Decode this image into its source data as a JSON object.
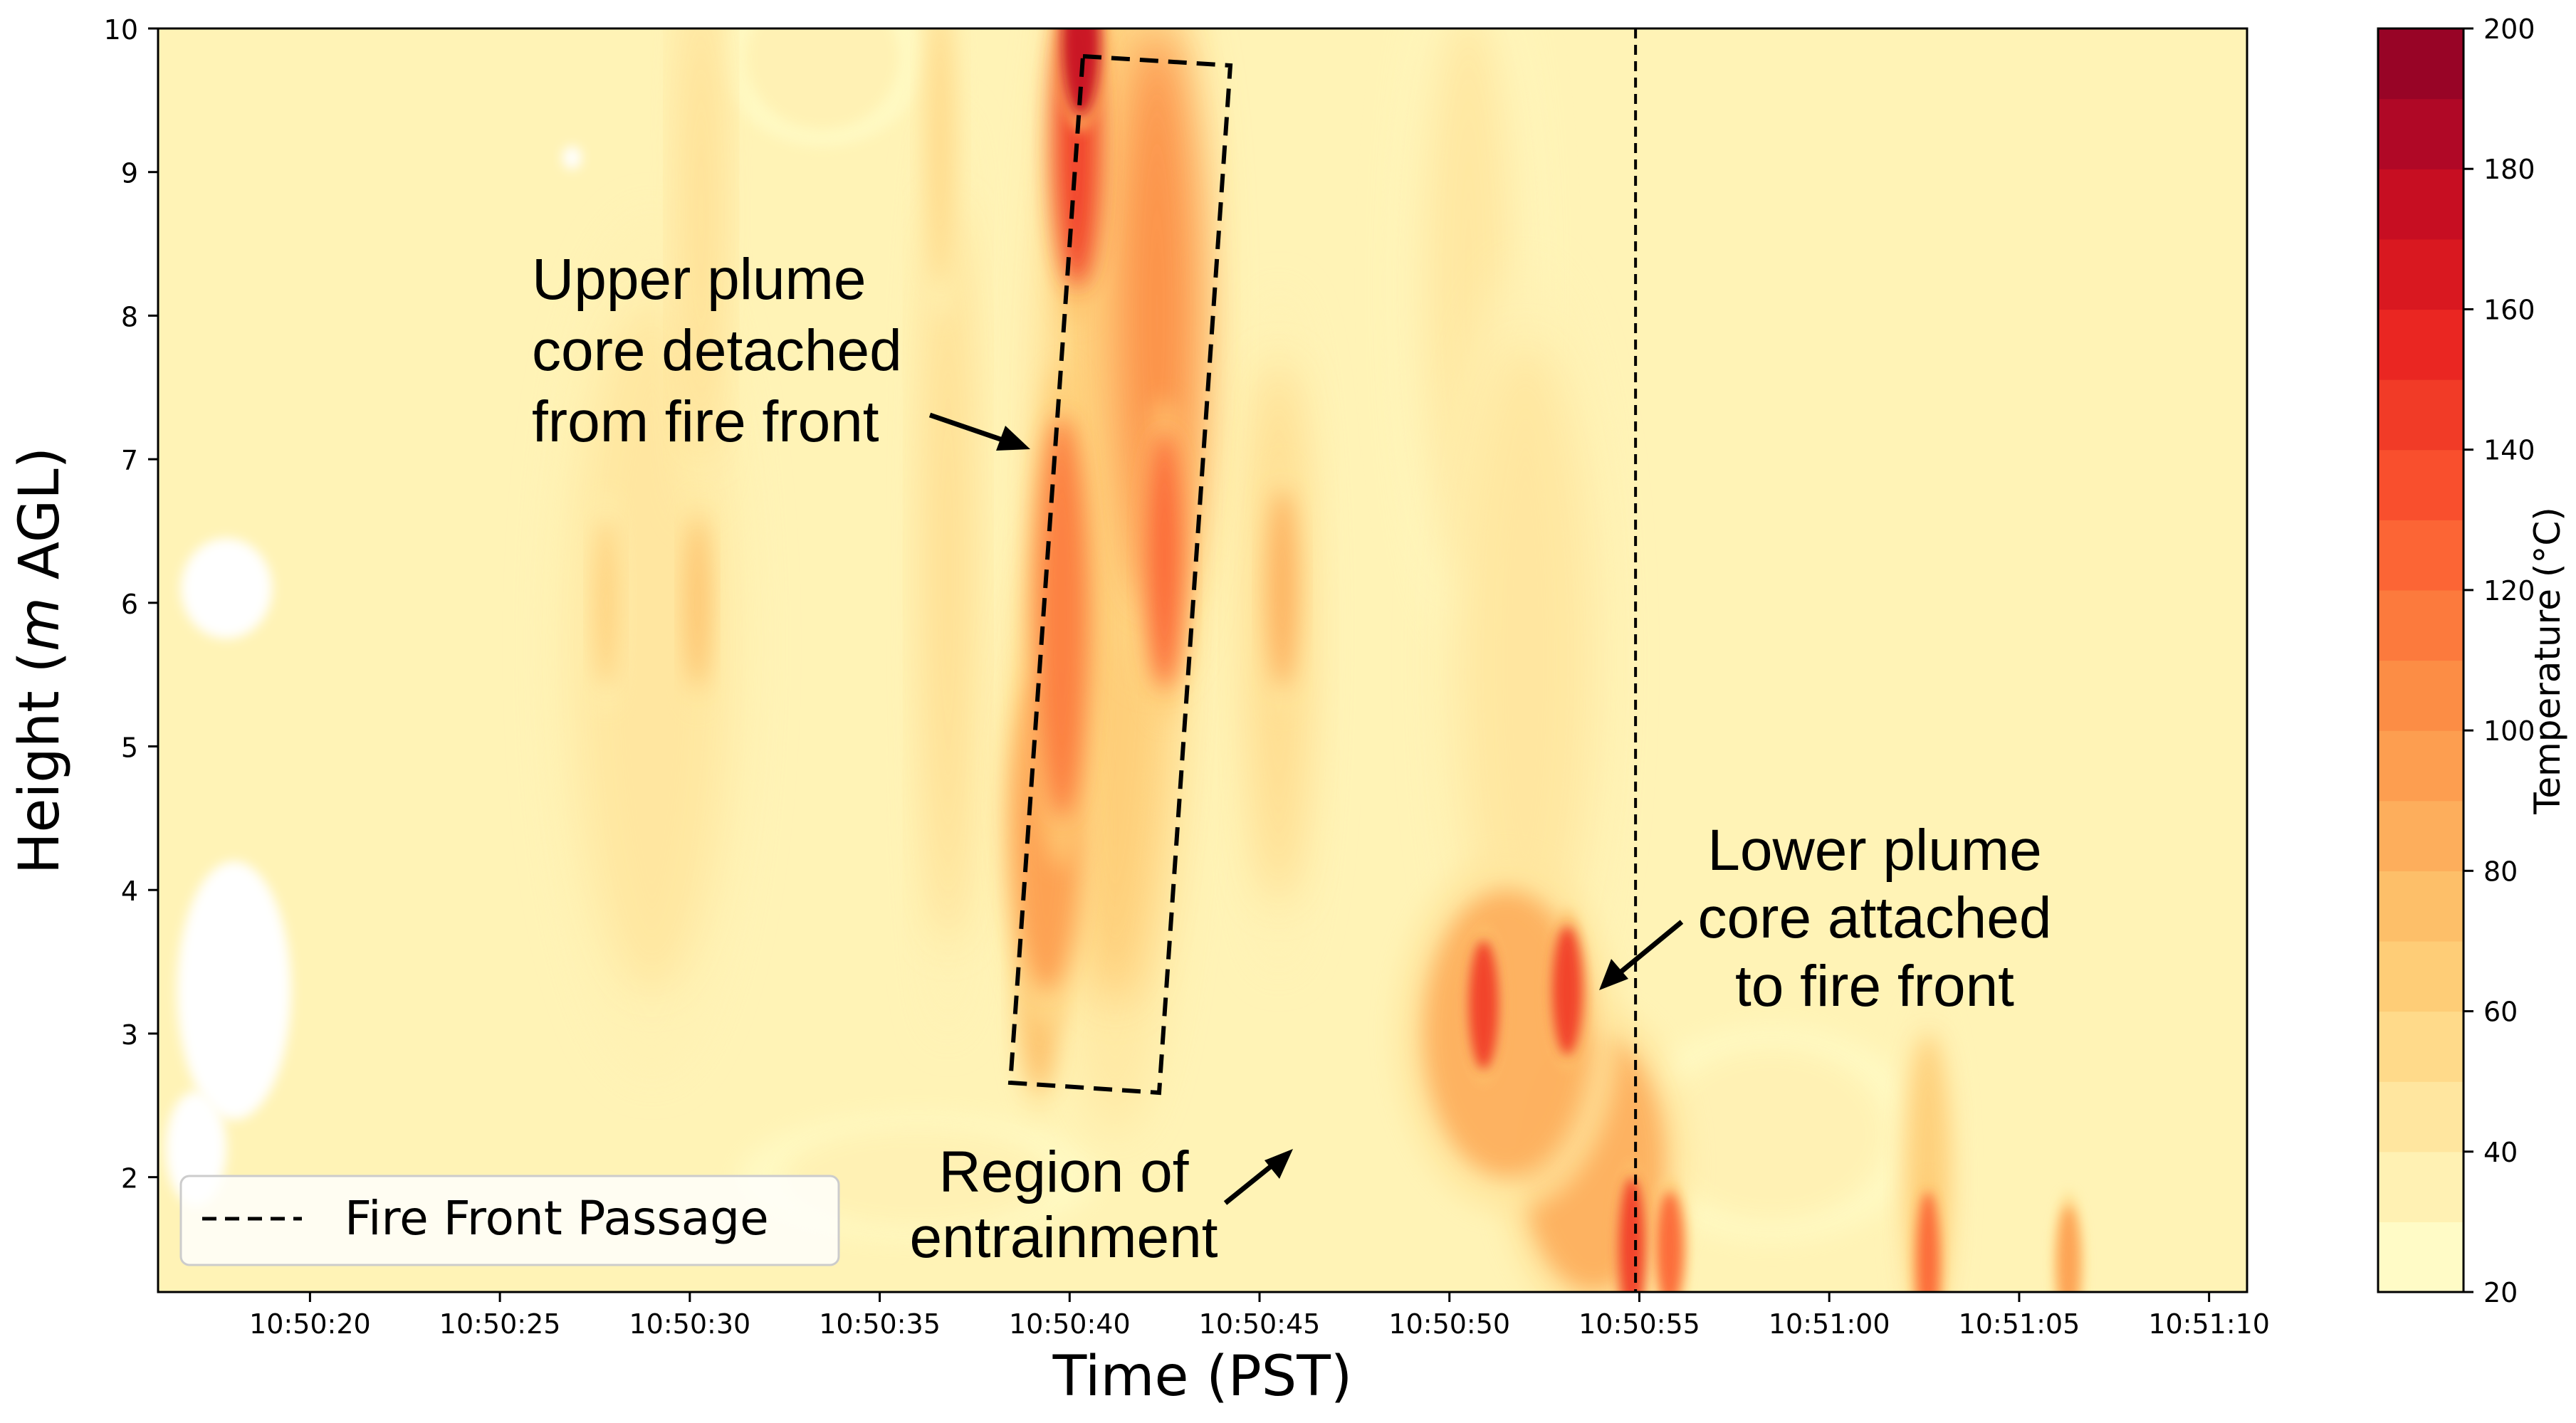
{
  "chart_data": {
    "type": "heatmap",
    "title": "",
    "xlabel": "Time (PST)",
    "ylabel_parts": [
      "Height (",
      "m",
      " AGL)"
    ],
    "x_tick_labels": [
      "10:50:20",
      "10:50:25",
      "10:50:30",
      "10:50:35",
      "10:50:40",
      "10:50:45",
      "10:50:50",
      "10:50:55",
      "10:51:00",
      "10:51:05",
      "10:51:10"
    ],
    "x_tick_seconds": [
      20,
      25,
      30,
      35,
      40,
      45,
      50,
      55,
      60,
      65,
      70
    ],
    "xlim_seconds": [
      16,
      71
    ],
    "y_ticks": [
      2,
      3,
      4,
      5,
      6,
      7,
      8,
      9,
      10
    ],
    "ylim": [
      1.2,
      10
    ],
    "colorbar": {
      "label": "Temperature (°C)",
      "ticks": [
        20,
        40,
        60,
        80,
        100,
        120,
        140,
        160,
        180,
        200
      ],
      "range": [
        20,
        200
      ],
      "levels": 18,
      "colors": [
        "#fffbc6",
        "#fff1b3",
        "#ffe69f",
        "#ffda8a",
        "#fecd77",
        "#fdbf69",
        "#fdae5c",
        "#fd9e50",
        "#fc8d45",
        "#fc7a3d",
        "#fc6535",
        "#f94f2d",
        "#f13b27",
        "#ea2622",
        "#d91820",
        "#c70e22",
        "#b00826",
        "#980426"
      ]
    },
    "fire_front_passage_seconds": 54.9,
    "plume_sources": [
      {
        "t": 40.3,
        "z": 9.9,
        "wt": 0.5,
        "wz": 0.5,
        "temp": 170
      },
      {
        "t": 40.2,
        "z": 9.2,
        "wt": 0.6,
        "wz": 1.0,
        "temp": 140
      },
      {
        "t": 42.3,
        "z": 8.0,
        "wt": 1.1,
        "wz": 2.0,
        "temp": 100
      },
      {
        "t": 42.5,
        "z": 6.3,
        "wt": 0.5,
        "wz": 0.9,
        "temp": 125
      },
      {
        "t": 39.8,
        "z": 5.9,
        "wt": 0.7,
        "wz": 1.4,
        "temp": 112
      },
      {
        "t": 39.4,
        "z": 4.4,
        "wt": 0.9,
        "wz": 1.1,
        "temp": 90
      },
      {
        "t": 39.2,
        "z": 3.3,
        "wt": 0.5,
        "wz": 0.7,
        "temp": 75
      },
      {
        "t": 41.2,
        "z": 6.8,
        "wt": 1.6,
        "wz": 3.6,
        "temp": 68
      },
      {
        "t": 40.0,
        "z": 5.0,
        "wt": 1.2,
        "wz": 1.5,
        "temp": 60
      },
      {
        "t": 36.8,
        "z": 6.2,
        "wt": 0.6,
        "wz": 2.6,
        "temp": 52
      },
      {
        "t": 36.6,
        "z": 9.2,
        "wt": 0.4,
        "wz": 1.0,
        "temp": 55
      },
      {
        "t": 30.3,
        "z": 8.7,
        "wt": 0.5,
        "wz": 1.7,
        "temp": 52
      },
      {
        "t": 30.2,
        "z": 6.0,
        "wt": 0.3,
        "wz": 0.6,
        "temp": 72
      },
      {
        "t": 27.8,
        "z": 6.0,
        "wt": 0.3,
        "wz": 0.6,
        "temp": 62
      },
      {
        "t": 29.0,
        "z": 5.7,
        "wt": 2.0,
        "wz": 2.4,
        "temp": 45
      },
      {
        "t": 45.6,
        "z": 6.1,
        "wt": 0.4,
        "wz": 0.7,
        "temp": 82
      },
      {
        "t": 45.5,
        "z": 5.8,
        "wt": 0.8,
        "wz": 1.9,
        "temp": 52
      },
      {
        "t": 50.9,
        "z": 3.2,
        "wt": 0.4,
        "wz": 0.45,
        "temp": 140
      },
      {
        "t": 53.1,
        "z": 3.3,
        "wt": 0.4,
        "wz": 0.45,
        "temp": 145
      },
      {
        "t": 51.5,
        "z": 3.0,
        "wt": 2.2,
        "wz": 1.0,
        "temp": 85
      },
      {
        "t": 54.8,
        "z": 1.5,
        "wt": 0.35,
        "wz": 0.5,
        "temp": 140
      },
      {
        "t": 55.8,
        "z": 1.5,
        "wt": 0.35,
        "wz": 0.4,
        "temp": 125
      },
      {
        "t": 53.8,
        "z": 2.1,
        "wt": 1.9,
        "wz": 0.9,
        "temp": 80
      },
      {
        "t": 62.6,
        "z": 1.4,
        "wt": 0.3,
        "wz": 0.5,
        "temp": 125
      },
      {
        "t": 62.6,
        "z": 2.0,
        "wt": 0.6,
        "wz": 1.0,
        "temp": 62
      },
      {
        "t": 66.3,
        "z": 1.4,
        "wt": 0.3,
        "wz": 0.4,
        "temp": 95
      },
      {
        "t": 52.0,
        "z": 5.6,
        "wt": 1.7,
        "wz": 2.2,
        "temp": 45
      },
      {
        "t": 50.5,
        "z": 8.2,
        "wt": 1.3,
        "wz": 2.0,
        "temp": 42
      },
      {
        "t": 36.0,
        "z": 2.0,
        "wt": 3.5,
        "wz": 0.35,
        "temp": 38
      },
      {
        "t": 58.5,
        "z": 2.3,
        "wt": 3.0,
        "wz": 0.6,
        "temp": 38
      },
      {
        "t": 33.5,
        "z": 9.8,
        "wt": 2.0,
        "wz": 0.5,
        "temp": 36
      }
    ],
    "no_data_regions": [
      {
        "t": 17.8,
        "z": 6.1,
        "wt": 1.2,
        "wz": 0.35
      },
      {
        "t": 18.0,
        "z": 3.3,
        "wt": 1.5,
        "wz": 0.9
      },
      {
        "t": 17.0,
        "z": 2.2,
        "wt": 0.8,
        "wz": 0.4
      },
      {
        "t": 26.9,
        "z": 9.1,
        "wt": 0.25,
        "wz": 0.08
      }
    ]
  },
  "annotations": {
    "upper": [
      "Upper plume",
      "core detached",
      "from fire front"
    ],
    "lower": [
      "Lower plume",
      "core attached",
      "to fire front"
    ],
    "entrainment": [
      "Region of",
      "entrainment"
    ]
  },
  "legend": {
    "label": "Fire Front Passage"
  }
}
